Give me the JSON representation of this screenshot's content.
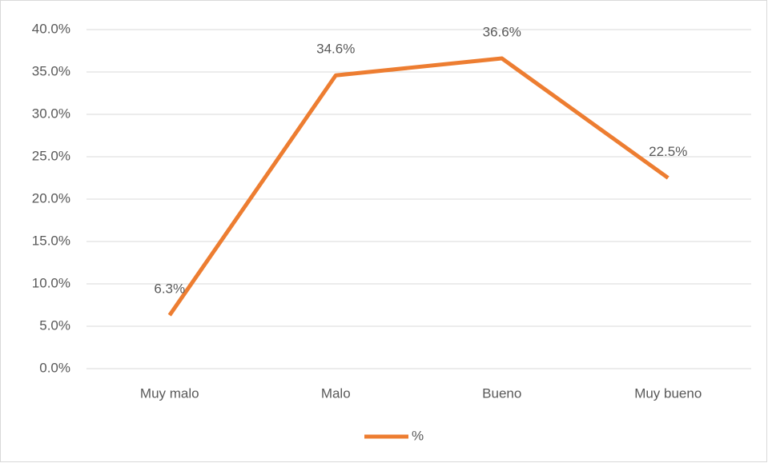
{
  "chart_data": {
    "type": "line",
    "categories": [
      "Muy malo",
      "Malo",
      "Bueno",
      "Muy bueno"
    ],
    "series": [
      {
        "name": "%",
        "color": "#ed7d31",
        "values": [
          6.3,
          34.6,
          36.6,
          22.5
        ],
        "value_labels": [
          "6.3%",
          "34.6%",
          "36.6%",
          "22.5%"
        ]
      }
    ],
    "ylim": [
      0,
      40
    ],
    "yticks": [
      {
        "value": 0,
        "label": "0.0%"
      },
      {
        "value": 5,
        "label": "5.0%"
      },
      {
        "value": 10,
        "label": "10.0%"
      },
      {
        "value": 15,
        "label": "15.0%"
      },
      {
        "value": 20,
        "label": "20.0%"
      },
      {
        "value": 25,
        "label": "25.0%"
      },
      {
        "value": 30,
        "label": "30.0%"
      },
      {
        "value": 35,
        "label": "35.0%"
      },
      {
        "value": 40,
        "label": "40.0%"
      }
    ],
    "grid": true,
    "legend": "bottom"
  }
}
